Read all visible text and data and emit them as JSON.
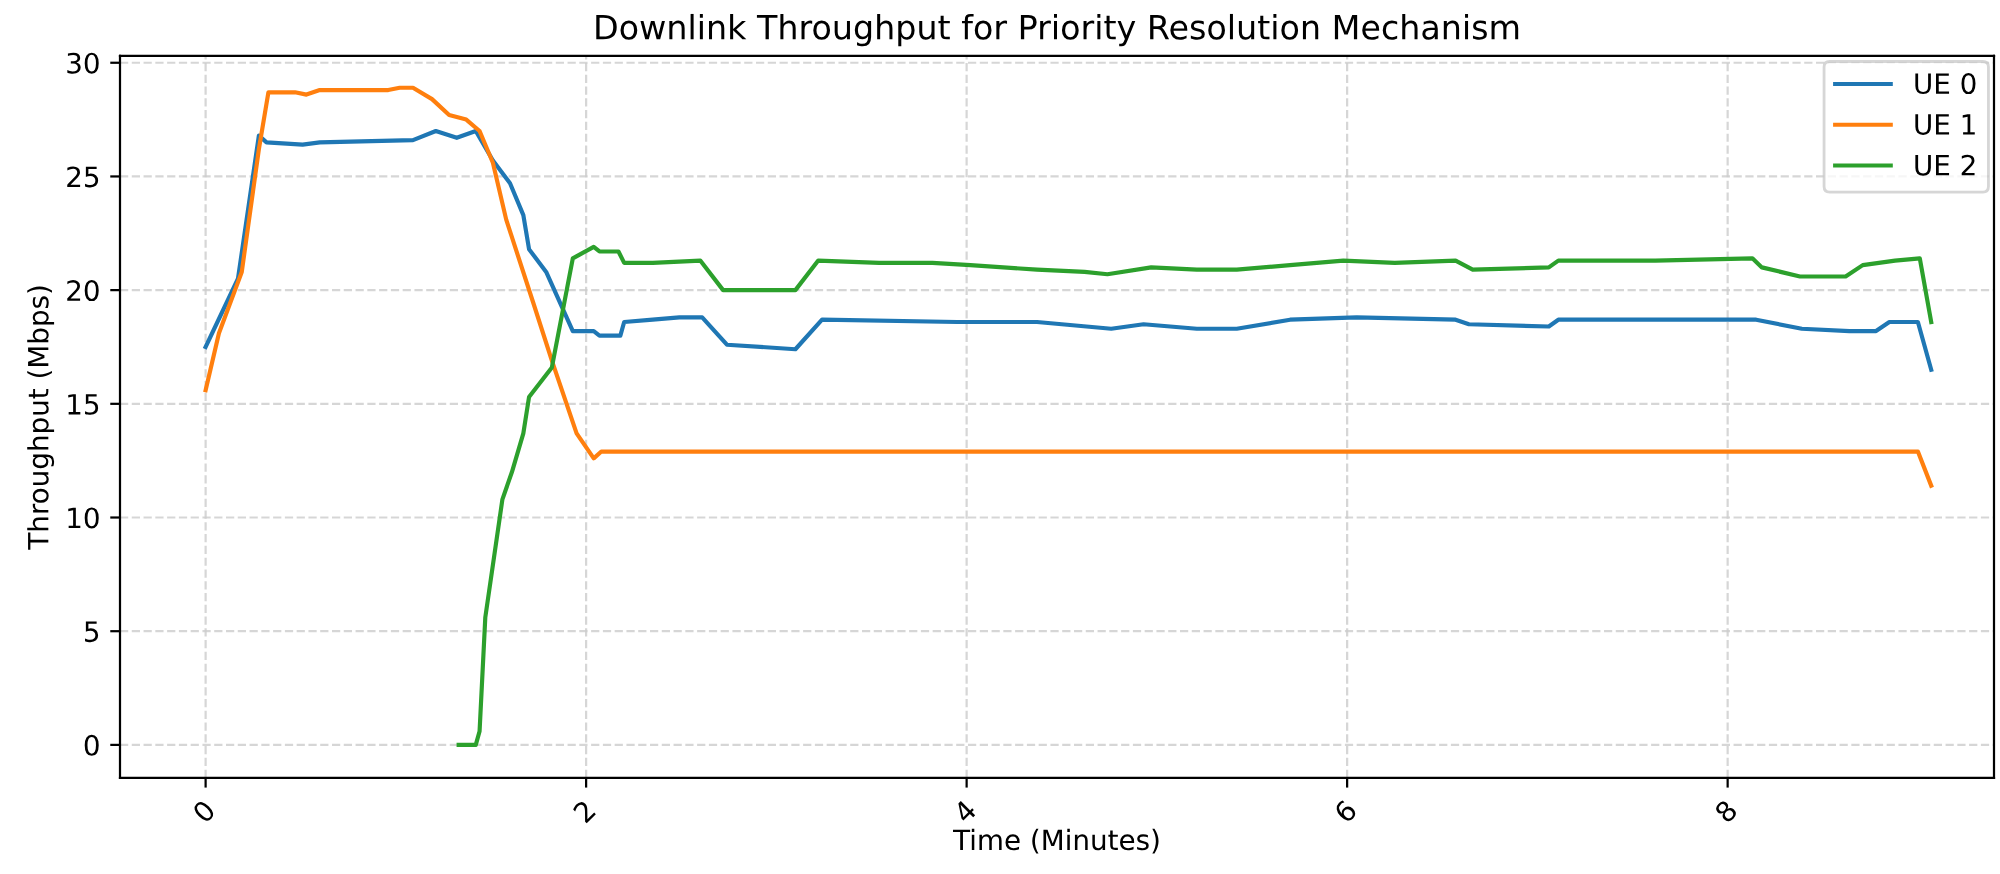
{
  "chart_data": {
    "type": "line",
    "title": "Downlink Throughput for Priority Resolution Mechanism",
    "xlabel": "Time (Minutes)",
    "ylabel": "Throughput (Mbps)",
    "xlim": [
      -0.45,
      9.4
    ],
    "ylim": [
      -1.45,
      30.3
    ],
    "xticks": [
      0,
      2,
      4,
      6,
      8
    ],
    "yticks": [
      0,
      5,
      10,
      15,
      20,
      25,
      30
    ],
    "grid": true,
    "legend": "top right",
    "line_style": "solid",
    "series": [
      {
        "name": "UE 0",
        "color": "#1f77b4",
        "x": [
          0,
          0.17,
          0.28,
          0.32,
          0.51,
          0.6,
          1.09,
          1.21,
          1.32,
          1.42,
          1.51,
          1.6,
          1.67,
          1.7,
          1.79,
          1.93,
          2.04,
          2.07,
          2.18,
          2.2,
          2.35,
          2.49,
          2.61,
          2.74,
          3.1,
          3.24,
          3.95,
          4.37,
          4.76,
          4.93,
          5.21,
          5.42,
          5.7,
          6.05,
          6.57,
          6.64,
          7.06,
          7.11,
          7.62,
          8.15,
          8.39,
          8.64,
          8.78,
          8.85,
          9.0,
          9.07
        ],
        "values": [
          17.5,
          20.5,
          26.8,
          26.5,
          26.4,
          26.5,
          26.6,
          27.0,
          26.7,
          27.0,
          25.7,
          24.7,
          23.3,
          21.8,
          20.8,
          18.2,
          18.2,
          18.0,
          18.0,
          18.6,
          18.7,
          18.8,
          18.8,
          17.6,
          17.4,
          18.7,
          18.6,
          18.6,
          18.3,
          18.5,
          18.3,
          18.3,
          18.7,
          18.8,
          18.7,
          18.5,
          18.4,
          18.7,
          18.7,
          18.7,
          18.3,
          18.2,
          18.2,
          18.6,
          18.6,
          16.5
        ]
      },
      {
        "name": "UE 1",
        "color": "#ff7f0e",
        "x": [
          0,
          0.07,
          0.19,
          0.28,
          0.33,
          0.47,
          0.53,
          0.6,
          0.96,
          1.02,
          1.09,
          1.19,
          1.28,
          1.37,
          1.44,
          1.51,
          1.58,
          1.72,
          1.82,
          1.95,
          2.04,
          2.08,
          3.12,
          9.0,
          9.07
        ],
        "values": [
          15.6,
          18.1,
          20.8,
          26.2,
          28.7,
          28.7,
          28.6,
          28.8,
          28.8,
          28.9,
          28.9,
          28.4,
          27.7,
          27.5,
          27.0,
          25.6,
          23.1,
          19.5,
          16.9,
          13.7,
          12.6,
          12.9,
          12.9,
          12.9,
          11.4
        ]
      },
      {
        "name": "UE 2",
        "color": "#2ca02c",
        "x": [
          1.33,
          1.42,
          1.44,
          1.47,
          1.56,
          1.61,
          1.67,
          1.7,
          1.82,
          1.93,
          2.04,
          2.07,
          2.17,
          2.2,
          2.35,
          2.6,
          2.72,
          3.1,
          3.22,
          3.54,
          3.82,
          4.02,
          4.37,
          4.62,
          4.74,
          4.97,
          5.21,
          5.42,
          5.7,
          5.98,
          6.25,
          6.57,
          6.66,
          7.06,
          7.11,
          7.62,
          8.13,
          8.18,
          8.38,
          8.62,
          8.71,
          8.88,
          9.01,
          9.07
        ],
        "values": [
          0,
          0,
          0.6,
          5.6,
          10.8,
          12.0,
          13.7,
          15.3,
          16.6,
          21.4,
          21.9,
          21.7,
          21.7,
          21.2,
          21.2,
          21.3,
          20.0,
          20.0,
          21.3,
          21.2,
          21.2,
          21.1,
          20.9,
          20.8,
          20.7,
          21.0,
          20.9,
          20.9,
          21.1,
          21.3,
          21.2,
          21.3,
          20.9,
          21.0,
          21.3,
          21.3,
          21.4,
          21.0,
          20.6,
          20.6,
          21.1,
          21.3,
          21.4,
          18.6
        ]
      }
    ]
  }
}
